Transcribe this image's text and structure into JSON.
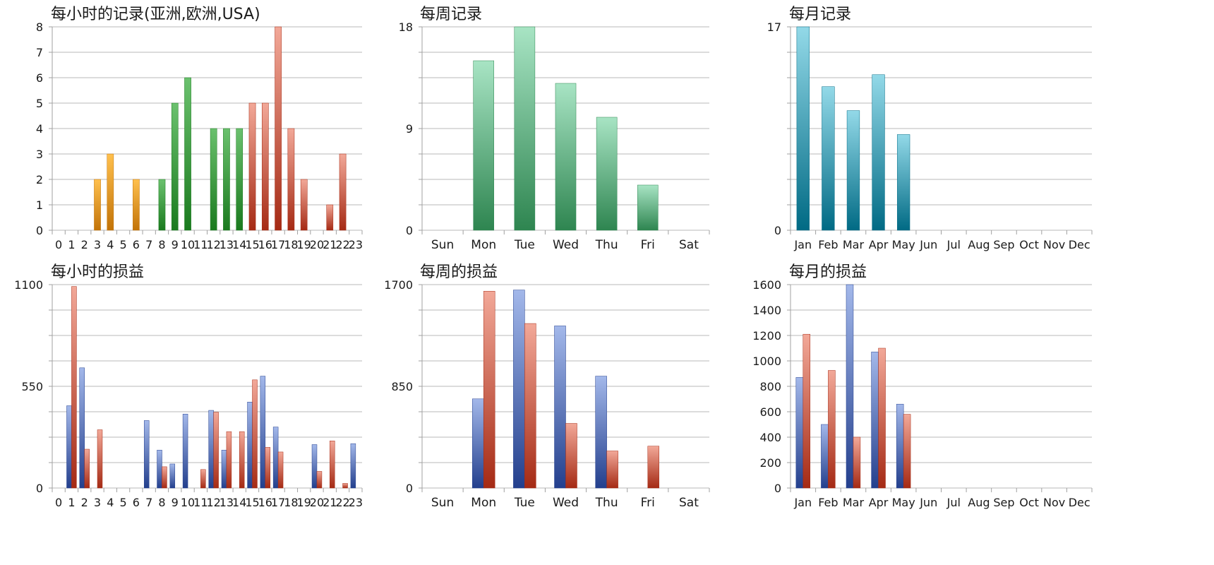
{
  "colors": {
    "orange_top": "#ffc04d",
    "orange_bot": "#c27308",
    "green_top": "#6bc16e",
    "green_bot": "#1a7a1e",
    "red_top": "#f2a898",
    "red_bot": "#a52a14",
    "teal_top": "#a8e4c4",
    "teal_bot": "#2e8550",
    "cyan_top": "#93d9e8",
    "cyan_bot": "#006a84",
    "blue_top": "#a3b8ea",
    "blue_bot": "#233f8d",
    "grid": "#b9b9b9",
    "axis": "#a0a0a0"
  },
  "chart_data": [
    {
      "id": "hourly-records",
      "type": "bar",
      "title": "每小时的记录(亚洲,欧洲,USA)",
      "categories": [
        "0",
        "1",
        "2",
        "3",
        "4",
        "5",
        "6",
        "7",
        "8",
        "9",
        "10",
        "11",
        "12",
        "13",
        "14",
        "15",
        "16",
        "17",
        "18",
        "19",
        "20",
        "21",
        "22",
        "23"
      ],
      "values": [
        0,
        0,
        0,
        2,
        3,
        0,
        2,
        0,
        2,
        5,
        6,
        0,
        4,
        4,
        4,
        5,
        5,
        8,
        4,
        2,
        0,
        1,
        3,
        0
      ],
      "bar_colors": [
        "orange",
        "orange",
        "orange",
        "orange",
        "orange",
        "orange",
        "orange",
        "orange",
        "green",
        "green",
        "green",
        "green",
        "green",
        "green",
        "green",
        "red",
        "red",
        "red",
        "red",
        "red",
        "red",
        "red",
        "red",
        "red"
      ],
      "yticks": [
        "0",
        "1",
        "2",
        "3",
        "4",
        "5",
        "6",
        "7",
        "8"
      ],
      "ylim": [
        0,
        8
      ]
    },
    {
      "id": "weekly-records",
      "type": "bar",
      "title": "每周记录",
      "categories": [
        "Sun",
        "Mon",
        "Tue",
        "Wed",
        "Thu",
        "Fri",
        "Sat"
      ],
      "values": [
        0,
        15,
        18,
        13,
        10,
        4,
        0
      ],
      "bar_color": "teal",
      "yticks": [
        "0",
        "9",
        "18"
      ],
      "ylim": [
        0,
        18
      ]
    },
    {
      "id": "monthly-records",
      "type": "bar",
      "title": "每月记录",
      "categories": [
        "Jan",
        "Feb",
        "Mar",
        "Apr",
        "May",
        "Jun",
        "Jul",
        "Aug",
        "Sep",
        "Oct",
        "Nov",
        "Dec"
      ],
      "values": [
        17,
        12,
        10,
        13,
        8,
        0,
        0,
        0,
        0,
        0,
        0,
        0
      ],
      "bar_color": "cyan",
      "yticks": [
        "0",
        "17"
      ],
      "ylim": [
        0,
        17
      ]
    },
    {
      "id": "hourly-pnl",
      "type": "bar",
      "title": "每小时的损益",
      "categories": [
        "0",
        "1",
        "2",
        "3",
        "4",
        "5",
        "6",
        "7",
        "8",
        "9",
        "10",
        "11",
        "12",
        "13",
        "14",
        "15",
        "16",
        "17",
        "18",
        "19",
        "20",
        "21",
        "22",
        "23"
      ],
      "series": [
        {
          "color": "blue",
          "values": [
            0,
            445,
            650,
            0,
            0,
            0,
            0,
            365,
            205,
            130,
            400,
            0,
            420,
            205,
            0,
            465,
            605,
            330,
            0,
            0,
            235,
            0,
            0,
            240
          ]
        },
        {
          "color": "red",
          "values": [
            0,
            1090,
            210,
            315,
            0,
            0,
            0,
            0,
            115,
            0,
            0,
            100,
            410,
            305,
            305,
            585,
            220,
            195,
            0,
            0,
            90,
            255,
            25,
            0
          ]
        }
      ],
      "yticks": [
        "0",
        "550",
        "1100"
      ],
      "ylim": [
        0,
        1100
      ]
    },
    {
      "id": "weekly-pnl",
      "type": "bar",
      "title": "每周的损益",
      "categories": [
        "Sun",
        "Mon",
        "Tue",
        "Wed",
        "Thu",
        "Fri",
        "Sat"
      ],
      "series": [
        {
          "color": "blue",
          "values": [
            0,
            745,
            1655,
            1355,
            935,
            0,
            0
          ]
        },
        {
          "color": "red",
          "values": [
            0,
            1645,
            1375,
            540,
            310,
            350,
            0
          ]
        }
      ],
      "yticks": [
        "0",
        "850",
        "1700"
      ],
      "ylim": [
        0,
        1700
      ]
    },
    {
      "id": "monthly-pnl",
      "type": "bar",
      "title": "每月的损益",
      "categories": [
        "Jan",
        "Feb",
        "Mar",
        "Apr",
        "May",
        "Jun",
        "Jul",
        "Aug",
        "Sep",
        "Oct",
        "Nov",
        "Dec"
      ],
      "series": [
        {
          "color": "blue",
          "values": [
            870,
            500,
            1600,
            1070,
            660,
            0,
            0,
            0,
            0,
            0,
            0,
            0
          ]
        },
        {
          "color": "red",
          "values": [
            1210,
            925,
            400,
            1100,
            580,
            0,
            0,
            0,
            0,
            0,
            0,
            0
          ]
        }
      ],
      "yticks": [
        "0",
        "200",
        "400",
        "600",
        "800",
        "1000",
        "1200",
        "1400",
        "1600"
      ],
      "ylim": [
        0,
        1600
      ]
    }
  ]
}
